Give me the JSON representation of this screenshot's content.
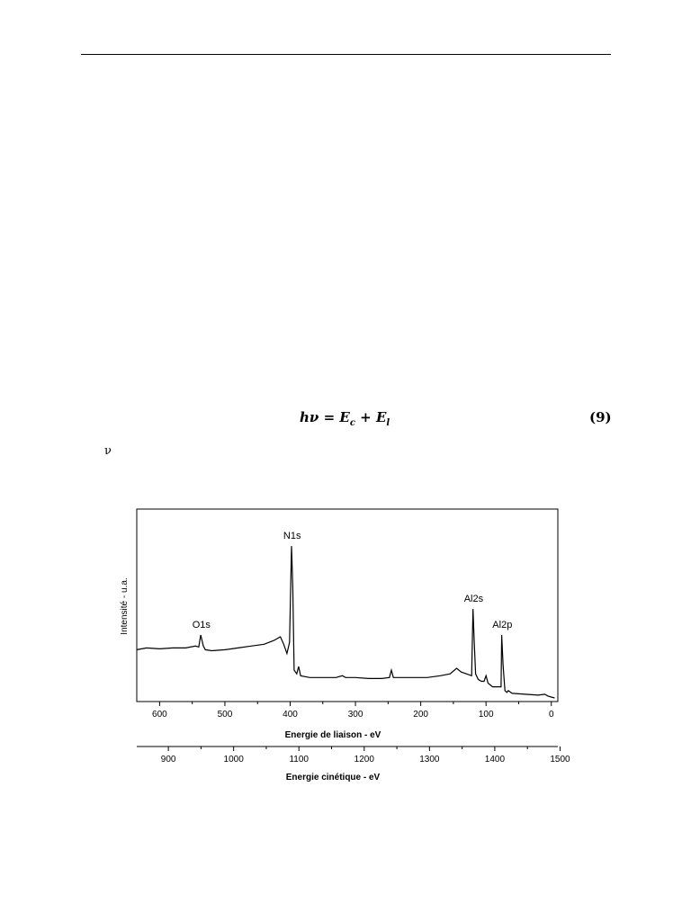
{
  "equation": {
    "lhs": "hν",
    "op": "=",
    "term1_base": "E",
    "term1_sub": "c",
    "plus": "+",
    "term2_base": "E",
    "term2_sub": "l",
    "number": "(9)"
  },
  "stray_symbol": "ν",
  "chart_data": {
    "type": "line",
    "ylabel": "Intensité - u.a.",
    "xlabel": "Energie de liaison - eV",
    "x2label": "Energie cinétique - eV",
    "x_reversed": true,
    "xlim": [
      635,
      -10
    ],
    "x_ticks": [
      600,
      500,
      400,
      300,
      200,
      100,
      0
    ],
    "x2_ticks": [
      900,
      1000,
      1100,
      1200,
      1300,
      1400,
      1500
    ],
    "x2_relation": "Ek = 1486.6 - Eb",
    "ylim": [
      0,
      100
    ],
    "grid": false,
    "series": [
      {
        "points": [
          [
            635,
            26
          ],
          [
            620,
            27
          ],
          [
            600,
            26.5
          ],
          [
            580,
            27
          ],
          [
            560,
            27
          ],
          [
            545,
            28
          ],
          [
            540,
            27.5
          ],
          [
            537,
            34
          ],
          [
            533,
            28
          ],
          [
            530,
            26
          ],
          [
            520,
            25.5
          ],
          [
            500,
            26
          ],
          [
            480,
            27
          ],
          [
            460,
            28
          ],
          [
            440,
            29
          ],
          [
            425,
            31
          ],
          [
            415,
            33
          ],
          [
            410,
            29
          ],
          [
            405,
            24
          ],
          [
            401,
            30
          ],
          [
            398,
            82
          ],
          [
            396,
            60
          ],
          [
            394,
            15
          ],
          [
            390,
            13
          ],
          [
            387,
            17
          ],
          [
            384,
            12
          ],
          [
            370,
            11
          ],
          [
            350,
            11
          ],
          [
            330,
            11
          ],
          [
            320,
            12
          ],
          [
            315,
            11
          ],
          [
            300,
            11
          ],
          [
            280,
            10.5
          ],
          [
            260,
            10.5
          ],
          [
            248,
            11
          ],
          [
            245,
            15
          ],
          [
            242,
            11
          ],
          [
            230,
            11
          ],
          [
            210,
            11
          ],
          [
            190,
            11
          ],
          [
            170,
            12
          ],
          [
            155,
            13
          ],
          [
            145,
            16
          ],
          [
            138,
            14
          ],
          [
            130,
            13
          ],
          [
            122,
            12
          ],
          [
            120,
            48
          ],
          [
            118,
            30
          ],
          [
            116,
            13
          ],
          [
            112,
            10
          ],
          [
            107,
            9
          ],
          [
            103,
            9
          ],
          [
            100,
            12
          ],
          [
            97,
            8
          ],
          [
            90,
            6
          ],
          [
            82,
            6
          ],
          [
            77,
            6
          ],
          [
            76,
            34
          ],
          [
            74,
            18
          ],
          [
            71,
            4
          ],
          [
            68,
            3
          ],
          [
            66,
            4
          ],
          [
            60,
            2.5
          ],
          [
            40,
            2
          ],
          [
            20,
            1.5
          ],
          [
            10,
            2
          ],
          [
            5,
            1
          ],
          [
            0,
            0.5
          ],
          [
            -5,
            0
          ]
        ]
      }
    ],
    "annotations": [
      {
        "text": "O1s",
        "x": 536,
        "y": 34
      },
      {
        "text": "N1s",
        "x": 397,
        "y": 82
      },
      {
        "text": "Al2s",
        "x": 119,
        "y": 48
      },
      {
        "text": "Al2p",
        "x": 75,
        "y": 34
      }
    ]
  }
}
